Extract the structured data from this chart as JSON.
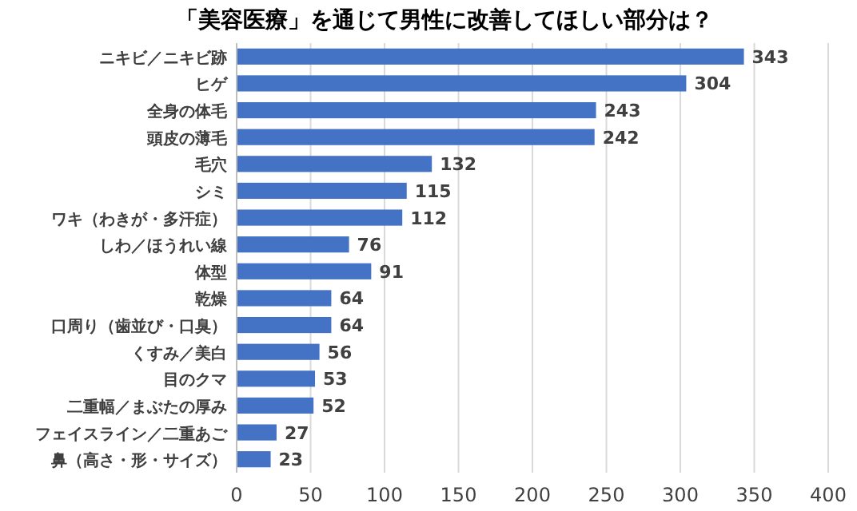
{
  "chart_data": {
    "type": "bar",
    "orientation": "horizontal",
    "title": "「美容医療」を通じて男性に改善してほしい部分は？",
    "categories": [
      "ニキビ／ニキビ跡",
      "ヒゲ",
      "全身の体毛",
      "頭皮の薄毛",
      "毛穴",
      "シミ",
      "ワキ（わきが・多汗症）",
      "しわ／ほうれい線",
      "体型",
      "乾燥",
      "口周り（歯並び・口臭）",
      "くすみ／美白",
      "目のクマ",
      "二重幅／まぶたの厚み",
      "フェイスライン／二重あご",
      "鼻（高さ・形・サイズ）"
    ],
    "values": [
      343,
      304,
      243,
      242,
      132,
      115,
      112,
      76,
      91,
      64,
      64,
      56,
      53,
      52,
      27,
      23
    ],
    "color": "#4472c4",
    "xlim": [
      0,
      400
    ],
    "xticks": [
      0,
      50,
      100,
      150,
      200,
      250,
      300,
      350,
      400
    ],
    "grid": "x",
    "data_labels": true
  }
}
